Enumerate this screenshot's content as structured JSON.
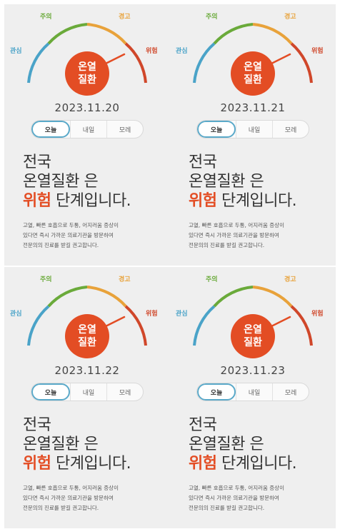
{
  "gauge": {
    "levels": [
      "관심",
      "주의",
      "경고",
      "위험"
    ],
    "circle_line1": "온열",
    "circle_line2": "질환",
    "colors": {
      "interest": "#4aa3c8",
      "caution": "#6aaa3a",
      "warning": "#e8a23a",
      "danger": "#d0472a",
      "circle": "#e34d24"
    }
  },
  "tabs": [
    "오늘",
    "내일",
    "모레"
  ],
  "headline": {
    "line1": "전국",
    "line2": "온열질환 은",
    "level_word": "위험",
    "line3_rest": " 단계입니다."
  },
  "description": {
    "line1": "고열, 빠른 호흡으로 두통, 어지러움 증상이",
    "line2": "있다면 즉시 가까운 의료기관을 방문하여",
    "line3": "전문의의 진료를 받길 권고합니다."
  },
  "panels": [
    {
      "date": "2023.11.20",
      "selected_tab": "오늘"
    },
    {
      "date": "2023.11.21",
      "selected_tab": "오늘"
    },
    {
      "date": "2023.11.22",
      "selected_tab": "오늘"
    },
    {
      "date": "2023.11.23",
      "selected_tab": "오늘"
    }
  ]
}
